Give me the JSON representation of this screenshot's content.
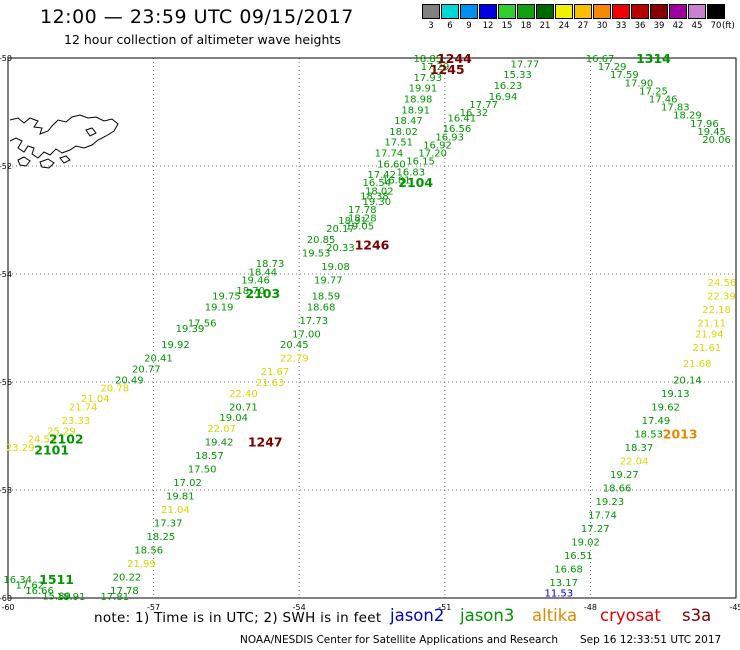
{
  "header": {
    "title": "12:00 — 23:59 UTC 09/15/2017",
    "subtitle": "12 hour collection of altimeter wave heights"
  },
  "legend": {
    "steps": [
      {
        "value": "3",
        "color": "#808080"
      },
      {
        "value": "6",
        "color": "#00d8d8"
      },
      {
        "value": "9",
        "color": "#0090f0"
      },
      {
        "value": "12",
        "color": "#0000e0"
      },
      {
        "value": "15",
        "color": "#30d030"
      },
      {
        "value": "18",
        "color": "#10a010"
      },
      {
        "value": "21",
        "color": "#006800"
      },
      {
        "value": "24",
        "color": "#f0f000"
      },
      {
        "value": "27",
        "color": "#f8c000"
      },
      {
        "value": "30",
        "color": "#f88800"
      },
      {
        "value": "33",
        "color": "#f00000"
      },
      {
        "value": "36",
        "color": "#b80000"
      },
      {
        "value": "39",
        "color": "#880000"
      },
      {
        "value": "42",
        "color": "#a000a0"
      },
      {
        "value": "45",
        "color": "#c880d0"
      },
      {
        "value": "70",
        "color": "#000000"
      }
    ],
    "unit": "(ft)"
  },
  "axes": {
    "lat_labels": [
      "-50",
      "-52",
      "-54",
      "-56",
      "-58",
      "-60"
    ],
    "lon_labels": [
      "-60",
      "-57",
      "-54",
      "-51",
      "-48",
      "-45"
    ]
  },
  "colors": {
    "green": "#009600",
    "ygreen": "#36b800",
    "yellow": "#d8d800",
    "darkred": "#7a0000",
    "orange": "#e08a00",
    "blue": "#0000cc"
  },
  "tracks": [
    {
      "color": "green",
      "points": [
        [
          "18.85",
          -51.35,
          -50.0
        ],
        [
          "17.29",
          -51.2,
          -50.15
        ],
        [
          "17.93",
          -51.35,
          -50.35
        ],
        [
          "19.91",
          -51.45,
          -50.55
        ],
        [
          "18.98",
          -51.55,
          -50.75
        ],
        [
          "18.91",
          -51.6,
          -50.95
        ],
        [
          "18.47",
          -51.75,
          -51.15
        ],
        [
          "18.02",
          -51.85,
          -51.35
        ],
        [
          "17.51",
          -51.95,
          -51.55
        ],
        [
          "17.74",
          -52.15,
          -51.75
        ],
        [
          "16.60",
          -52.1,
          -51.95
        ],
        [
          "17.42",
          -52.3,
          -52.15
        ],
        [
          "16.54",
          -52.4,
          -52.3
        ],
        [
          "18.38",
          -52.45,
          -52.55
        ],
        [
          "17.78",
          -52.7,
          -52.8
        ],
        [
          "18.31",
          -52.9,
          -53.0
        ],
        [
          "20.17",
          -53.15,
          -53.15
        ],
        [
          "20.85",
          -53.55,
          -53.35
        ],
        [
          "19.53",
          -53.65,
          -53.6
        ],
        [
          "18.73",
          -54.6,
          -53.8
        ],
        [
          "18.44",
          -54.75,
          -53.95
        ],
        [
          "19.46",
          -54.9,
          -54.1
        ],
        [
          "18.70",
          -55.0,
          -54.3
        ],
        [
          "19.75",
          -55.5,
          -54.4
        ],
        [
          "19.19",
          -55.65,
          -54.6
        ],
        [
          "17.56",
          -56.0,
          -54.9
        ],
        [
          "19.39",
          -56.25,
          -55.0
        ],
        [
          "19.92",
          -56.55,
          -55.3
        ],
        [
          "20.41",
          -56.9,
          -55.55
        ],
        [
          "20.77",
          -57.15,
          -55.75
        ],
        [
          "20.49",
          -57.5,
          -55.95
        ]
      ]
    },
    {
      "color": "yellow",
      "points": [
        [
          "20.78",
          -57.8,
          -56.1
        ],
        [
          "21.04",
          -58.2,
          -56.3
        ],
        [
          "21.74",
          -58.45,
          -56.45
        ],
        [
          "23.33",
          -58.6,
          -56.7
        ],
        [
          "25.29",
          -58.9,
          -56.9
        ],
        [
          "24.53",
          -59.3,
          -57.05
        ],
        [
          "23.29",
          -59.75,
          -57.2
        ]
      ]
    },
    {
      "color": "green",
      "points": [
        [
          "17.77",
          -49.35,
          -50.1
        ],
        [
          "15.33",
          -49.5,
          -50.3
        ],
        [
          "16.23",
          -49.7,
          -50.5
        ],
        [
          "16.94",
          -49.8,
          -50.7
        ],
        [
          "17.77",
          -50.2,
          -50.85
        ],
        [
          "16.32",
          -50.4,
          -51.0
        ],
        [
          "16.41",
          -50.65,
          -51.1
        ],
        [
          "16.56",
          -50.75,
          -51.3
        ],
        [
          "16.93",
          -50.9,
          -51.45
        ],
        [
          "16.92",
          -51.15,
          -51.6
        ],
        [
          "17.20",
          -51.25,
          -51.75
        ],
        [
          "16.15",
          -51.5,
          -51.9
        ],
        [
          "16.83",
          -51.7,
          -52.1
        ],
        [
          "16.81",
          -52.0,
          -52.25
        ],
        [
          "18.02",
          -52.35,
          -52.45
        ],
        [
          "19.30",
          -52.4,
          -52.65
        ],
        [
          "18.28",
          -52.7,
          -52.95
        ],
        [
          "19.05",
          -52.75,
          -53.1
        ],
        [
          "20.33",
          -53.15,
          -53.5
        ],
        [
          "19.08",
          -53.25,
          -53.85
        ],
        [
          "19.77",
          -53.4,
          -54.1
        ],
        [
          "18.59",
          -53.45,
          -54.4
        ],
        [
          "18.68",
          -53.55,
          -54.6
        ],
        [
          "17.73",
          -53.7,
          -54.85
        ],
        [
          "17.00",
          -53.85,
          -55.1
        ],
        [
          "20.45",
          -54.1,
          -55.3
        ]
      ]
    },
    {
      "color": "yellow",
      "points": [
        [
          "22.79",
          -54.1,
          -55.55
        ],
        [
          "21.67",
          -54.5,
          -55.8
        ],
        [
          "21.63",
          -54.6,
          -56.0
        ],
        [
          "22.40",
          -55.15,
          -56.2
        ]
      ]
    },
    {
      "color": "green",
      "points": [
        [
          "20.71",
          -55.15,
          -56.45
        ],
        [
          "19.04",
          -55.35,
          -56.65
        ]
      ]
    },
    {
      "color": "yellow",
      "points": [
        [
          "22.07",
          -55.6,
          -56.85
        ]
      ]
    },
    {
      "color": "green",
      "points": [
        [
          "19.42",
          -55.65,
          -57.1
        ],
        [
          "18.57",
          -55.85,
          -57.35
        ],
        [
          "17.50",
          -56.0,
          -57.6
        ],
        [
          "17.02",
          -56.3,
          -57.85
        ],
        [
          "19.81",
          -56.45,
          -58.1
        ]
      ]
    },
    {
      "color": "yellow",
      "points": [
        [
          "21.04",
          -56.55,
          -58.35
        ]
      ]
    },
    {
      "color": "green",
      "points": [
        [
          "17.37",
          -56.7,
          -58.6
        ],
        [
          "18.25",
          -56.85,
          -58.85
        ],
        [
          "18.56",
          -57.1,
          -59.1
        ]
      ]
    },
    {
      "color": "yellow",
      "points": [
        [
          "21.99",
          -57.25,
          -59.35
        ]
      ]
    },
    {
      "color": "green",
      "points": [
        [
          "20.22",
          -57.55,
          -59.6
        ],
        [
          "17.78",
          -57.6,
          -59.85
        ],
        [
          "17.81",
          -57.8,
          -60.0
        ]
      ]
    },
    {
      "color": "green",
      "points": [
        [
          "16.34",
          -59.8,
          -59.65
        ],
        [
          "17.62",
          -59.55,
          -59.75
        ],
        [
          "16.66",
          -59.35,
          -59.85
        ],
        [
          "15.89",
          -59.0,
          -59.95
        ],
        [
          "18.91",
          -58.7,
          -60.0
        ]
      ]
    },
    {
      "color": "green",
      "points": [
        [
          "16.67",
          -47.8,
          -50.0
        ],
        [
          "17.29",
          -47.55,
          -50.15
        ],
        [
          "17.59",
          -47.3,
          -50.3
        ],
        [
          "17.90",
          -47.0,
          -50.45
        ],
        [
          "17.25",
          -46.7,
          -50.6
        ],
        [
          "17.46",
          -46.5,
          -50.75
        ],
        [
          "17.83",
          -46.25,
          -50.9
        ],
        [
          "18.29",
          -46.0,
          -51.05
        ],
        [
          "17.96",
          -45.65,
          -51.2
        ],
        [
          "19.45",
          -45.5,
          -51.35
        ],
        [
          "20.06",
          -45.4,
          -51.5
        ]
      ]
    },
    {
      "color": "yellow",
      "points": [
        [
          "24.56",
          -45.1,
          -54.15
        ],
        [
          "22.39",
          -45.3,
          -54.4
        ],
        [
          "22.18",
          -45.4,
          -54.65
        ],
        [
          "21.11",
          -45.5,
          -54.9
        ],
        [
          "21.94",
          -45.55,
          -55.1
        ],
        [
          "21.61",
          -45.6,
          -55.35
        ],
        [
          "21.68",
          -45.8,
          -55.65
        ]
      ]
    },
    {
      "color": "green",
      "points": [
        [
          "20.14",
          -46.0,
          -55.95
        ],
        [
          "19.13",
          -46.25,
          -56.2
        ],
        [
          "19.62",
          -46.45,
          -56.45
        ],
        [
          "17.49",
          -46.65,
          -56.7
        ],
        [
          "18.53",
          -46.8,
          -56.95
        ],
        [
          "18.37",
          -47.0,
          -57.2
        ]
      ]
    },
    {
      "color": "yellow",
      "points": [
        [
          "22.04",
          -47.1,
          -57.45
        ]
      ]
    },
    {
      "color": "green",
      "points": [
        [
          "19.27",
          -47.3,
          -57.7
        ],
        [
          "18.66",
          -47.45,
          -57.95
        ],
        [
          "19.23",
          -47.6,
          -58.2
        ],
        [
          "17.74",
          -47.75,
          -58.45
        ],
        [
          "17.27",
          -47.9,
          -58.7
        ],
        [
          "19.02",
          -48.1,
          -58.95
        ],
        [
          "16.51",
          -48.25,
          -59.2
        ],
        [
          "16.68",
          -48.45,
          -59.45
        ],
        [
          "13.17",
          -48.55,
          -59.7
        ]
      ]
    },
    {
      "color": "blue",
      "points": [
        [
          "11.53",
          -48.65,
          -59.9
        ]
      ]
    }
  ],
  "track_labels": [
    {
      "text": "1244",
      "color": "darkred",
      "lon": -50.8,
      "lat": -50.0
    },
    {
      "text": "1245",
      "color": "darkred",
      "lon": -50.95,
      "lat": -50.2
    },
    {
      "text": "1246",
      "color": "darkred",
      "lon": -52.5,
      "lat": -53.45
    },
    {
      "text": "1247",
      "color": "darkred",
      "lon": -54.7,
      "lat": -57.1
    },
    {
      "text": "2104",
      "color": "green",
      "lon": -51.6,
      "lat": -52.3
    },
    {
      "text": "2103",
      "color": "green",
      "lon": -54.75,
      "lat": -54.35
    },
    {
      "text": "2102",
      "color": "green",
      "lon": -58.8,
      "lat": -57.05
    },
    {
      "text": "2101",
      "color": "green",
      "lon": -59.1,
      "lat": -57.25
    },
    {
      "text": "1511",
      "color": "green",
      "lon": -59.0,
      "lat": -59.65
    },
    {
      "text": "1314",
      "color": "green",
      "lon": -46.7,
      "lat": -50.0
    },
    {
      "text": "2013",
      "color": "orange",
      "lon": -46.15,
      "lat": -56.95
    }
  ],
  "footer": {
    "note": "note:  1) Time is in UTC;  2) SWH is in feet",
    "satellites": [
      {
        "name": "jason2",
        "color": "blue"
      },
      {
        "name": "jason3",
        "color": "green"
      },
      {
        "name": "altika",
        "color": "orange"
      },
      {
        "name": "cryosat",
        "color": "red"
      },
      {
        "name": "s3a",
        "color": "darkred"
      }
    ],
    "credit": "NOAA/NESDIS Center for Satellite Applications and Research",
    "timestamp": "Sep 16 12:33:51 UTC 2017"
  }
}
